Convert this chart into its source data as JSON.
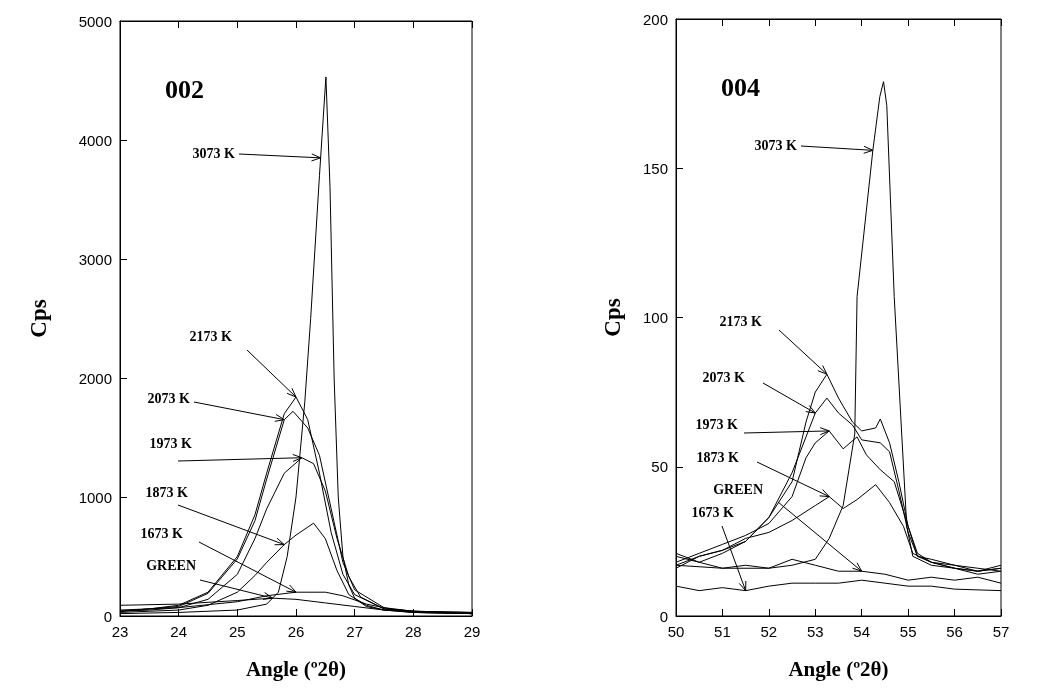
{
  "chart_data": [
    {
      "type": "line",
      "title": "002",
      "xlabel": "Angle (º2θ)",
      "ylabel": "Cps",
      "xlim": [
        23,
        29
      ],
      "xticks": [
        23,
        24,
        25,
        26,
        27,
        28,
        29
      ],
      "ylim": [
        0,
        5000
      ],
      "yticks": [
        0,
        1000,
        2000,
        3000,
        4000,
        5000
      ],
      "grid": false,
      "line_style": "solid",
      "series": [
        {
          "color": "#000000",
          "x": [
            23,
            24,
            25,
            25.5,
            25.7,
            25.85,
            26,
            26.15,
            26.25,
            26.4,
            26.51,
            26.58,
            26.65,
            26.72,
            26.8,
            26.9,
            27,
            27.2,
            27.5,
            28,
            29
          ],
          "values": [
            20,
            30,
            50,
            100,
            200,
            500,
            1000,
            1800,
            2500,
            3700,
            4530,
            3600,
            2000,
            1000,
            500,
            260,
            150,
            90,
            50,
            30,
            20
          ]
        },
        {
          "color": "#000000",
          "x": [
            23,
            23.5,
            24,
            24.5,
            25,
            25.3,
            25.5,
            25.8,
            26,
            26.2,
            26.4,
            26.6,
            26.8,
            27,
            27.5,
            28,
            29
          ],
          "values": [
            40,
            60,
            90,
            200,
            500,
            850,
            1200,
            1700,
            1840,
            1650,
            1200,
            700,
            350,
            180,
            60,
            40,
            20
          ]
        },
        {
          "color": "#000000",
          "x": [
            23,
            23.5,
            24,
            24.5,
            25,
            25.3,
            25.5,
            25.8,
            25.95,
            26.2,
            26.4,
            26.6,
            26.8,
            27,
            27.5,
            28,
            29
          ],
          "values": [
            40,
            60,
            80,
            190,
            480,
            800,
            1150,
            1650,
            1720,
            1580,
            1350,
            900,
            450,
            220,
            70,
            40,
            20
          ]
        },
        {
          "color": "#000000",
          "x": [
            23,
            23.5,
            24,
            24.5,
            25,
            25.3,
            25.5,
            25.8,
            26.1,
            26.3,
            26.5,
            26.7,
            26.9,
            27.1,
            27.5,
            28,
            29
          ],
          "values": [
            40,
            50,
            70,
            140,
            350,
            650,
            900,
            1200,
            1330,
            1280,
            1050,
            650,
            330,
            160,
            60,
            30,
            20
          ]
        },
        {
          "color": "#000000",
          "x": [
            23,
            23.5,
            24,
            24.5,
            25,
            25.3,
            25.5,
            25.8,
            26,
            26.3,
            26.5,
            26.7,
            26.9,
            27.2,
            27.5,
            28,
            29
          ],
          "values": [
            30,
            40,
            50,
            90,
            200,
            340,
            450,
            600,
            680,
            780,
            650,
            380,
            180,
            80,
            50,
            30,
            20
          ]
        },
        {
          "color": "#000000",
          "x": [
            23,
            24,
            25,
            25.5,
            26,
            26.5,
            26.8,
            27.2,
            27.6,
            28,
            29
          ],
          "values": [
            50,
            70,
            120,
            170,
            200,
            200,
            170,
            100,
            60,
            40,
            30
          ]
        },
        {
          "color": "#000000",
          "x": [
            23,
            24,
            25,
            25.6,
            26,
            26.5,
            27,
            27.5,
            28,
            29
          ],
          "values": [
            90,
            100,
            130,
            150,
            140,
            110,
            80,
            50,
            40,
            30
          ]
        }
      ],
      "annotations": [
        {
          "text": "3073 K",
          "x": 26.42,
          "y": 3850
        },
        {
          "text": "2173 K",
          "x": 26,
          "y": 1840
        },
        {
          "text": "2073 K",
          "x": 25.8,
          "y": 1650
        },
        {
          "text": "1973 K",
          "x": 26.1,
          "y": 1330
        },
        {
          "text": "1873 K",
          "x": 25.8,
          "y": 600
        },
        {
          "text": "1673 K",
          "x": 26,
          "y": 200
        },
        {
          "text": "GREEN",
          "x": 25.6,
          "y": 150
        }
      ]
    },
    {
      "type": "line",
      "title": "004",
      "xlabel": "Angle (º2θ)",
      "ylabel": "Cps",
      "xlim": [
        50,
        57
      ],
      "xticks": [
        50,
        51,
        52,
        53,
        54,
        55,
        56,
        57
      ],
      "ylim": [
        0,
        200
      ],
      "yticks": [
        0,
        50,
        100,
        150,
        200
      ],
      "grid": false,
      "line_style": "solid",
      "series": [
        {
          "color": "#000000",
          "x": [
            50,
            51,
            52,
            52.5,
            53,
            53.3,
            53.6,
            53.85,
            53.9,
            54.24,
            54.39,
            54.47,
            54.54,
            54.7,
            54.97,
            55.1,
            55.5,
            56,
            56.5,
            57
          ],
          "values": [
            17,
            16,
            16,
            17,
            19,
            26,
            37,
            61,
            107,
            156,
            174,
            179,
            171,
            107,
            30,
            20,
            17,
            16,
            15,
            16
          ]
        },
        {
          "color": "#000000",
          "x": [
            50,
            50.5,
            51,
            51.5,
            52,
            52.5,
            52.8,
            53,
            53.25,
            53.5,
            53.8,
            54,
            54.3,
            54.4,
            54.6,
            54.8,
            55,
            55.2,
            55.5,
            56,
            56.5,
            57
          ],
          "values": [
            17,
            20,
            22,
            25,
            33,
            45,
            65,
            75,
            81,
            73,
            65,
            62,
            63,
            66,
            58,
            45,
            30,
            20,
            19,
            17,
            15,
            16
          ]
        },
        {
          "color": "#000000",
          "x": [
            50,
            50.5,
            51,
            51.5,
            52,
            52.5,
            52.8,
            53,
            53.25,
            53.5,
            53.8,
            54,
            54.4,
            54.6,
            54.8,
            55,
            55.2,
            55.5,
            56,
            56.5,
            57
          ],
          "values": [
            20,
            18,
            21,
            25,
            33,
            48,
            60,
            68,
            73,
            68,
            64,
            59,
            58,
            55,
            42,
            28,
            20,
            18,
            17,
            16,
            15
          ]
        },
        {
          "color": "#000000",
          "x": [
            50,
            50.5,
            51,
            51.5,
            52,
            52.5,
            52.8,
            53,
            53.3,
            53.6,
            53.9,
            54.1,
            54.4,
            54.7,
            55,
            55.2,
            55.5,
            56,
            56.5,
            57
          ],
          "values": [
            18,
            21,
            24,
            27,
            31,
            40,
            53,
            58,
            62,
            56,
            60,
            54,
            49,
            45,
            30,
            21,
            18,
            16,
            15,
            17
          ]
        },
        {
          "color": "#000000",
          "x": [
            50,
            50.5,
            51,
            51.5,
            52,
            52.5,
            53,
            53.3,
            53.6,
            53.9,
            54.3,
            54.6,
            54.9,
            55.1,
            55.5,
            56,
            56.5,
            57
          ],
          "values": [
            16,
            20,
            22,
            26,
            28,
            32,
            37,
            40,
            36,
            39,
            44,
            38,
            30,
            21,
            18,
            16,
            14,
            15
          ]
        },
        {
          "color": "#000000",
          "x": [
            50,
            50.5,
            51,
            51.5,
            52,
            52.5,
            53,
            53.5,
            54,
            54.5,
            55,
            55.5,
            56,
            56.5,
            57
          ],
          "values": [
            21,
            18,
            16,
            17,
            16,
            19,
            17,
            15,
            15,
            14,
            12,
            13,
            12,
            13,
            11
          ]
        },
        {
          "color": "#000000",
          "x": [
            50,
            50.5,
            51,
            51.5,
            52,
            52.5,
            53,
            53.5,
            54,
            54.5,
            55,
            55.5,
            56,
            57
          ],
          "values": [
            10,
            8.5,
            9.5,
            8.5,
            10,
            11,
            11,
            11,
            12,
            11,
            10,
            10,
            9,
            8.5
          ]
        }
      ],
      "annotations": [
        {
          "text": "3073 K",
          "x": 54.24,
          "y": 156
        },
        {
          "text": "2173 K",
          "x": 53.25,
          "y": 81
        },
        {
          "text": "2073 K",
          "x": 53,
          "y": 68
        },
        {
          "text": "1973 K",
          "x": 53.3,
          "y": 62
        },
        {
          "text": "1873 K",
          "x": 53.3,
          "y": 40
        },
        {
          "text": "GREEN",
          "x": 54,
          "y": 15
        },
        {
          "text": "1673 K",
          "x": 51.5,
          "y": 8.5
        }
      ]
    }
  ]
}
